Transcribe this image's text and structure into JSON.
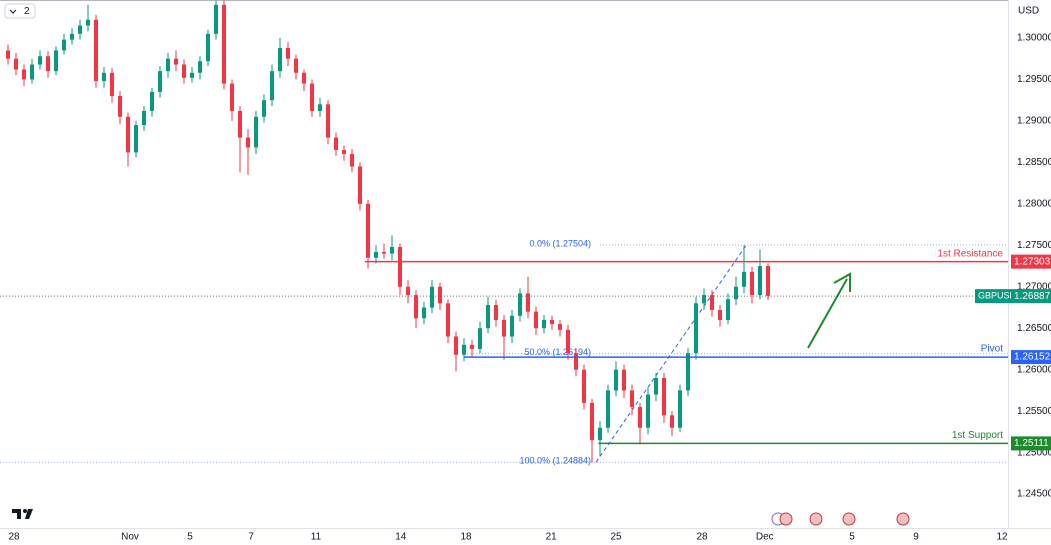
{
  "chart_data": {
    "type": "candlestick",
    "symbol": "GBPUSD",
    "currency": "USD",
    "interval": "2",
    "last": 1.26887,
    "up_color": "#089981",
    "down_color": "#f23645",
    "open": [
      1.2985,
      1.2975,
      1.2962,
      1.295,
      1.2968,
      1.2978,
      1.296,
      1.2985,
      1.2998,
      1.3005,
      1.3015,
      1.3022,
      1.2948,
      1.2958,
      1.293,
      1.2905,
      1.2862,
      1.2895,
      1.2912,
      1.2935,
      1.296,
      1.2975,
      1.2968,
      1.2952,
      1.2958,
      1.2972,
      1.3005,
      1.304,
      1.2945,
      1.2912,
      1.288,
      1.2868,
      1.2905,
      1.2925,
      1.296,
      1.2988,
      1.2975,
      1.2958,
      1.2945,
      1.2912,
      1.292,
      1.288,
      1.2865,
      1.286,
      1.2845,
      1.28,
      1.2735,
      1.2742,
      1.274,
      1.2748,
      1.27,
      1.269,
      1.2662,
      1.2675,
      1.27,
      1.268,
      1.264,
      1.2618,
      1.263,
      1.2625,
      1.265,
      1.2678,
      1.266,
      1.264,
      1.2665,
      1.2692,
      1.267,
      1.265,
      1.266,
      1.2655,
      1.2648,
      1.262,
      1.26,
      1.256,
      1.2515,
      1.253,
      1.2575,
      1.26,
      1.2575,
      1.2555,
      1.253,
      1.257,
      1.259,
      1.2545,
      1.253,
      1.2575,
      1.262,
      1.268,
      1.269,
      1.2672,
      1.266,
      1.2685,
      1.27,
      1.2718,
      1.269,
      1.2725
    ],
    "high": [
      1.2992,
      1.2982,
      1.2968,
      1.2975,
      1.2985,
      1.2984,
      1.299,
      1.3005,
      1.3012,
      1.3022,
      1.304,
      1.3028,
      1.2965,
      1.2964,
      1.2936,
      1.291,
      1.29,
      1.2918,
      1.294,
      1.2966,
      1.2982,
      1.2985,
      1.2974,
      1.2965,
      1.2978,
      1.301,
      1.3045,
      1.3045,
      1.295,
      1.2918,
      1.289,
      1.2912,
      1.2932,
      1.2968,
      1.3,
      1.2995,
      1.298,
      1.2962,
      1.295,
      1.2928,
      1.2925,
      1.2886,
      1.287,
      1.2866,
      1.285,
      1.2805,
      1.275,
      1.2752,
      1.2762,
      1.2752,
      1.2708,
      1.2696,
      1.2682,
      1.2708,
      1.2705,
      1.2685,
      1.2646,
      1.2638,
      1.2636,
      1.2658,
      1.2688,
      1.2684,
      1.2666,
      1.2672,
      1.2698,
      1.2712,
      1.2676,
      1.2666,
      1.2665,
      1.266,
      1.2654,
      1.2626,
      1.2606,
      1.2565,
      1.2538,
      1.2582,
      1.261,
      1.2606,
      1.2582,
      1.256,
      1.2578,
      1.2596,
      1.2596,
      1.255,
      1.2582,
      1.2626,
      1.2688,
      1.2698,
      1.2696,
      1.2678,
      1.2692,
      1.2712,
      1.275,
      1.2724,
      1.2745,
      1.2728
    ],
    "low": [
      1.2968,
      1.2955,
      1.2942,
      1.2945,
      1.2962,
      1.2952,
      1.2955,
      1.298,
      1.2992,
      1.2998,
      1.3008,
      1.294,
      1.294,
      1.2922,
      1.2896,
      1.2845,
      1.2856,
      1.2888,
      1.2905,
      1.2928,
      1.2952,
      1.296,
      1.2945,
      1.2946,
      1.295,
      1.2966,
      1.2998,
      1.2938,
      1.29,
      1.2838,
      1.2835,
      1.286,
      1.2898,
      1.2918,
      1.2952,
      1.2966,
      1.295,
      1.2936,
      1.2905,
      1.2905,
      1.2872,
      1.2858,
      1.2852,
      1.2838,
      1.2792,
      1.2722,
      1.2728,
      1.2734,
      1.2732,
      1.269,
      1.268,
      1.265,
      1.2655,
      1.2668,
      1.2672,
      1.2632,
      1.2598,
      1.261,
      1.2615,
      1.262,
      1.2644,
      1.2652,
      1.2612,
      1.2632,
      1.2658,
      1.2662,
      1.2642,
      1.2644,
      1.2648,
      1.264,
      1.2612,
      1.2592,
      1.2552,
      1.2488,
      1.2496,
      1.2524,
      1.2568,
      1.2566,
      1.2545,
      1.251,
      1.2522,
      1.2562,
      1.2536,
      1.252,
      1.2525,
      1.2568,
      1.2612,
      1.2672,
      1.2664,
      1.2652,
      1.2655,
      1.2678,
      1.2692,
      1.268,
      1.2685,
      1.2684
    ],
    "close": [
      1.2975,
      1.2962,
      1.295,
      1.2968,
      1.2978,
      1.296,
      1.2985,
      1.2998,
      1.3005,
      1.3015,
      1.3022,
      1.2948,
      1.2958,
      1.293,
      1.2905,
      1.2862,
      1.2895,
      1.2912,
      1.2935,
      1.296,
      1.2975,
      1.2968,
      1.2952,
      1.2958,
      1.2972,
      1.3005,
      1.304,
      1.2945,
      1.2912,
      1.288,
      1.2868,
      1.2905,
      1.2925,
      1.296,
      1.2988,
      1.2975,
      1.2958,
      1.2945,
      1.2912,
      1.292,
      1.288,
      1.2865,
      1.286,
      1.2845,
      1.28,
      1.2735,
      1.2742,
      1.274,
      1.2748,
      1.27,
      1.269,
      1.2662,
      1.2675,
      1.27,
      1.268,
      1.264,
      1.2618,
      1.263,
      1.2625,
      1.265,
      1.2678,
      1.266,
      1.264,
      1.2665,
      1.2692,
      1.267,
      1.265,
      1.266,
      1.2655,
      1.2648,
      1.262,
      1.26,
      1.256,
      1.2515,
      1.253,
      1.2575,
      1.26,
      1.2575,
      1.2555,
      1.253,
      1.257,
      1.259,
      1.2545,
      1.253,
      1.2575,
      1.262,
      1.268,
      1.269,
      1.2672,
      1.266,
      1.2685,
      1.27,
      1.2718,
      1.269,
      1.2725,
      1.2689
    ],
    "xlim": [
      -1,
      125
    ],
    "xticks": [
      {
        "value": 0.75,
        "label": "28"
      },
      {
        "value": 15.25,
        "label": "Nov"
      },
      {
        "value": 22.75,
        "label": "5"
      },
      {
        "value": 30.4,
        "label": "7"
      },
      {
        "value": 38.5,
        "label": "11"
      },
      {
        "value": 49.1,
        "label": "14"
      },
      {
        "value": 57.25,
        "label": "18"
      },
      {
        "value": 67.9,
        "label": "21"
      },
      {
        "value": 76,
        "label": "25"
      },
      {
        "value": 86.75,
        "label": "28"
      },
      {
        "value": 94.6,
        "label": "Dec"
      },
      {
        "value": 105.5,
        "label": "5"
      },
      {
        "value": 113.5,
        "label": "9"
      },
      {
        "value": 124.25,
        "label": "12"
      }
    ],
    "ylim": [
      1.24091,
      1.30458
    ],
    "yticks": [
      {
        "value": 1.3,
        "label": "1.30000"
      },
      {
        "value": 1.295,
        "label": "1.29500"
      },
      {
        "value": 1.29,
        "label": "1.29000"
      },
      {
        "value": 1.285,
        "label": "1.28500"
      },
      {
        "value": 1.28,
        "label": "1.28000"
      },
      {
        "value": 1.275,
        "label": "1.27500"
      },
      {
        "value": 1.27,
        "label": "1.27000"
      },
      {
        "value": 1.265,
        "label": "1.26500"
      },
      {
        "value": 1.26,
        "label": "1.26000"
      },
      {
        "value": 1.255,
        "label": "1.25500"
      },
      {
        "value": 1.25,
        "label": "1.25000"
      },
      {
        "value": 1.245,
        "label": "1.24500"
      }
    ],
    "levels": [
      {
        "name": "1st Resistance",
        "value": 1.27303,
        "color": "#f23645"
      },
      {
        "name": "Pivot",
        "value": 1.26152,
        "color": "#2962ff"
      },
      {
        "name": "1st Support",
        "value": 1.25111,
        "color": "#1e8a2e"
      }
    ],
    "fib": [
      {
        "label": "0.0% (1.27504)",
        "value": 1.27504
      },
      {
        "label": "50.0% (1.26194)",
        "value": 1.26194
      },
      {
        "label": "100.0% (1.24884)",
        "value": 1.24884
      }
    ]
  }
}
